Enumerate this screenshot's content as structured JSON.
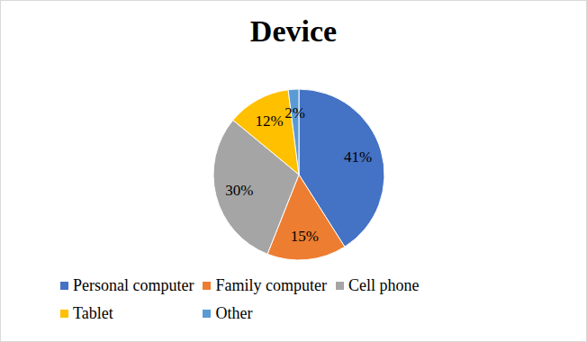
{
  "chart_data": {
    "type": "pie",
    "title": "Device",
    "categories": [
      "Personal computer",
      "Family computer",
      "Cell phone",
      "Tablet",
      "Other"
    ],
    "values": [
      41,
      15,
      30,
      12,
      2
    ],
    "value_labels": [
      "41%",
      "15%",
      "30%",
      "12%",
      "2%"
    ],
    "colors": [
      "#4472c4",
      "#ed7d31",
      "#a5a5a5",
      "#ffc000",
      "#5b9bd5"
    ],
    "data_labels": true,
    "legend": "bottom"
  }
}
